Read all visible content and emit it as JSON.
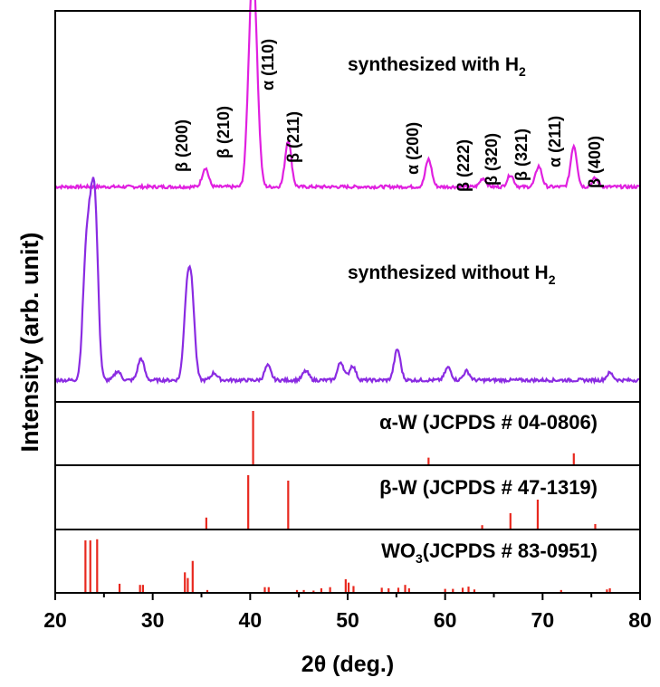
{
  "chart_data": {
    "type": "line",
    "xlabel": "2θ (deg.)",
    "ylabel": "Intensity (arb. unit)",
    "xlim": [
      20,
      80
    ],
    "x_ticks": [
      "20",
      "30",
      "40",
      "50",
      "60",
      "70",
      "80"
    ],
    "series": [
      {
        "name": "synthesized with H2",
        "label_main": "synthesized with H",
        "label_sub": "2",
        "color": "#e020e0",
        "baseline": 0.04,
        "peaks": [
          [
            35.4,
            0.11
          ],
          [
            39.9,
            0.42
          ],
          [
            40.3,
            0.92
          ],
          [
            40.7,
            0.35
          ],
          [
            43.9,
            0.27
          ],
          [
            58.3,
            0.16
          ],
          [
            63.9,
            0.05
          ],
          [
            66.7,
            0.07
          ],
          [
            69.6,
            0.12
          ],
          [
            73.2,
            0.24
          ],
          [
            75.4,
            0.05
          ]
        ]
      },
      {
        "name": "synthesized without H2",
        "label_main": "synthesized without H",
        "label_sub": "2",
        "color": "#8a2be2",
        "baseline": 0.04,
        "peaks": [
          [
            23.1,
            0.55
          ],
          [
            23.6,
            0.62
          ],
          [
            24.1,
            0.85
          ],
          [
            26.4,
            0.05
          ],
          [
            28.8,
            0.12
          ],
          [
            33.5,
            0.42
          ],
          [
            34.0,
            0.44
          ],
          [
            36.3,
            0.04
          ],
          [
            41.8,
            0.08
          ],
          [
            45.7,
            0.05
          ],
          [
            49.3,
            0.1
          ],
          [
            50.5,
            0.08
          ],
          [
            55.1,
            0.17
          ],
          [
            60.3,
            0.07
          ],
          [
            62.2,
            0.05
          ],
          [
            76.9,
            0.04
          ]
        ]
      }
    ],
    "peak_labels": [
      "β (200)",
      "β (210)",
      "α (110)",
      "β (211)",
      "α (200)",
      "β (222)",
      "β (320)",
      "β (321)",
      "α (211)",
      "β (400)"
    ],
    "reference_patterns": [
      {
        "label": "α-W (JCPDS # 04-0806)",
        "color": "#e8281e",
        "lines": [
          [
            40.3,
            100
          ],
          [
            58.3,
            14
          ],
          [
            73.2,
            22
          ]
        ]
      },
      {
        "label": "β-W (JCPDS # 47-1319)",
        "color": "#e8281e",
        "lines": [
          [
            35.5,
            22
          ],
          [
            39.8,
            100
          ],
          [
            43.9,
            90
          ],
          [
            63.8,
            8
          ],
          [
            66.7,
            30
          ],
          [
            69.5,
            55
          ],
          [
            75.4,
            10
          ]
        ]
      },
      {
        "label_main": "WO",
        "label_sub": "3",
        "label_rest": "(JCPDS # 83-0951)",
        "color": "#e8281e",
        "lines": [
          [
            23.1,
            92
          ],
          [
            23.6,
            92
          ],
          [
            24.3,
            94
          ],
          [
            26.6,
            16
          ],
          [
            28.7,
            14
          ],
          [
            29.0,
            14
          ],
          [
            33.3,
            36
          ],
          [
            33.6,
            26
          ],
          [
            34.1,
            56
          ],
          [
            35.6,
            5
          ],
          [
            41.5,
            10
          ],
          [
            41.9,
            10
          ],
          [
            44.8,
            5
          ],
          [
            45.5,
            5
          ],
          [
            46.5,
            4
          ],
          [
            47.3,
            8
          ],
          [
            48.2,
            10
          ],
          [
            49.8,
            24
          ],
          [
            50.1,
            18
          ],
          [
            50.6,
            12
          ],
          [
            53.5,
            9
          ],
          [
            54.2,
            8
          ],
          [
            55.2,
            9
          ],
          [
            55.9,
            14
          ],
          [
            56.3,
            8
          ],
          [
            60.0,
            7
          ],
          [
            60.8,
            7
          ],
          [
            61.8,
            9
          ],
          [
            62.4,
            11
          ],
          [
            63.0,
            6
          ],
          [
            71.9,
            5
          ],
          [
            76.6,
            6
          ],
          [
            76.9,
            8
          ]
        ]
      }
    ]
  }
}
